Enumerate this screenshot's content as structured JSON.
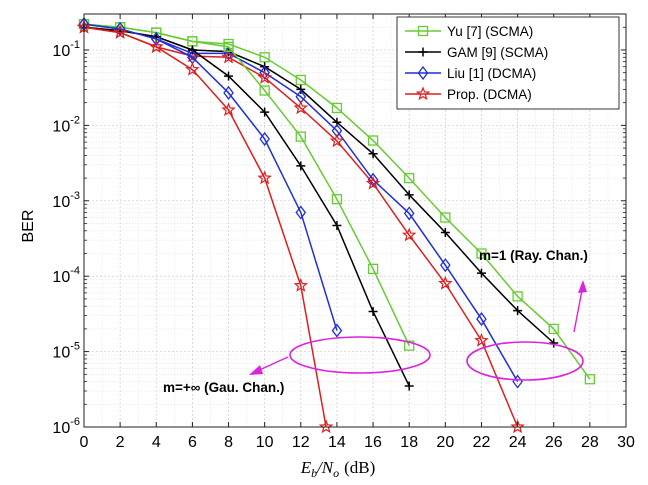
{
  "chart_data": {
    "type": "line",
    "xlabel": {
      "var": "E",
      "sub1": "b",
      "slash": "/N",
      "sub2": "o",
      "unit": "(dB)"
    },
    "ylabel": "BER",
    "xlim": [
      0,
      30
    ],
    "ylim": [
      1e-06,
      0.3
    ],
    "yscale": "log",
    "grid": true,
    "legend_placement": "top-right",
    "x_ticks": [
      0,
      2,
      4,
      6,
      8,
      10,
      12,
      14,
      16,
      18,
      20,
      22,
      24,
      26,
      28,
      30
    ],
    "y_ticks": [
      {
        "base": "10",
        "exp": "-1",
        "value": 0.1
      },
      {
        "base": "10",
        "exp": "-2",
        "value": 0.01
      },
      {
        "base": "10",
        "exp": "-3",
        "value": 0.001
      },
      {
        "base": "10",
        "exp": "-4",
        "value": 0.0001
      },
      {
        "base": "10",
        "exp": "-5",
        "value": 1e-05
      },
      {
        "base": "10",
        "exp": "-6",
        "value": 1e-06
      }
    ],
    "series": [
      {
        "name": "Yu [7] (SCMA)",
        "color": "#66cc33",
        "marker": "square",
        "group": "rayleigh",
        "x": [
          0,
          2,
          4,
          6,
          8,
          10,
          12,
          14,
          16,
          18,
          20,
          22,
          24,
          26,
          28
        ],
        "y": [
          0.22,
          0.2,
          0.17,
          0.13,
          0.12,
          0.08,
          0.04,
          0.017,
          0.0063,
          0.002,
          0.0006,
          0.0002,
          5.4e-05,
          2e-05,
          4.3e-06
        ]
      },
      {
        "name": "GAM [9] (SCMA)",
        "color": "#000000",
        "marker": "plus",
        "group": "rayleigh",
        "x": [
          0,
          2,
          4,
          6,
          8,
          10,
          12,
          14,
          16,
          18,
          20,
          22,
          24,
          26
        ],
        "y": [
          0.2,
          0.18,
          0.15,
          0.1,
          0.095,
          0.06,
          0.03,
          0.011,
          0.0042,
          0.0012,
          0.00038,
          0.00011,
          3.5e-05,
          1.3e-05
        ]
      },
      {
        "name": "Liu [1] (DCMA)",
        "color": "#1f2fd6",
        "marker": "diamond",
        "group": "rayleigh",
        "x": [
          0,
          2,
          4,
          6,
          8,
          10,
          12,
          14,
          16,
          18,
          20,
          22,
          24
        ],
        "y": [
          0.22,
          0.19,
          0.14,
          0.09,
          0.09,
          0.05,
          0.024,
          0.0085,
          0.0019,
          0.00068,
          0.00014,
          2.7e-05,
          4e-06
        ]
      },
      {
        "name": "Prop. (DCMA)",
        "color": "#dd1f1f",
        "marker": "star",
        "group": "rayleigh",
        "x": [
          0,
          2,
          4,
          6,
          8,
          10,
          12,
          14,
          16,
          18,
          20,
          22,
          24
        ],
        "y": [
          0.2,
          0.17,
          0.11,
          0.083,
          0.08,
          0.043,
          0.017,
          0.0062,
          0.0017,
          0.00035,
          8e-05,
          1.4e-05,
          1e-06
        ]
      },
      {
        "name": "Yu [7] (SCMA)",
        "color": "#66cc33",
        "marker": "square",
        "group": "gaussian",
        "x": [
          0,
          2,
          4,
          6,
          8,
          10,
          12,
          14,
          16,
          18
        ],
        "y": [
          0.22,
          0.2,
          0.17,
          0.13,
          0.11,
          0.029,
          0.0071,
          0.00105,
          0.000125,
          1.2e-05
        ]
      },
      {
        "name": "GAM [9] (SCMA)",
        "color": "#000000",
        "marker": "plus",
        "group": "gaussian",
        "x": [
          0,
          2,
          4,
          6,
          8,
          10,
          12,
          14,
          16,
          18
        ],
        "y": [
          0.2,
          0.18,
          0.15,
          0.1,
          0.045,
          0.015,
          0.0029,
          0.00047,
          3.4e-05,
          3.5e-06
        ]
      },
      {
        "name": "Liu [1] (DCMA)",
        "color": "#1f2fd6",
        "marker": "diamond",
        "group": "gaussian",
        "x": [
          0,
          2,
          4,
          6,
          8,
          10,
          12,
          14
        ],
        "y": [
          0.22,
          0.19,
          0.14,
          0.08,
          0.027,
          0.0066,
          0.0007,
          1.9e-05
        ]
      },
      {
        "name": "Prop. (DCMA)",
        "color": "#dd1f1f",
        "marker": "star",
        "group": "gaussian",
        "x": [
          0,
          2,
          4,
          6,
          8,
          10,
          12,
          13.4
        ],
        "y": [
          0.2,
          0.17,
          0.11,
          0.055,
          0.016,
          0.002,
          7.5e-05,
          1e-06
        ]
      }
    ],
    "legend": [
      "Yu [7] (SCMA)",
      "GAM [9] (SCMA)",
      "Liu [1] (DCMA)",
      "Prop. (DCMA)"
    ],
    "annotations": [
      {
        "text": "m=1 (Ray. Chan.)",
        "color": "#dd22dd"
      },
      {
        "text": "m=+∞ (Gau. Chan.)",
        "color": "#dd22dd"
      }
    ]
  }
}
